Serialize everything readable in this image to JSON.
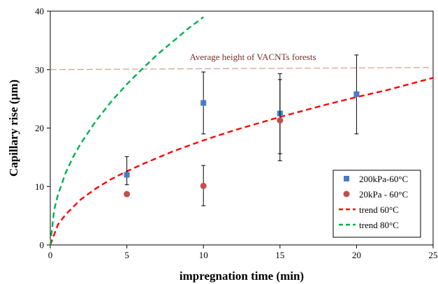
{
  "chart_data": {
    "type": "scatter",
    "xlabel": "impregnation time (min)",
    "ylabel": "Capillary rise (µm)",
    "xlim": [
      0,
      25
    ],
    "ylim": [
      0,
      40
    ],
    "xticks": [
      0,
      5,
      10,
      15,
      20,
      25
    ],
    "yticks": [
      0,
      10,
      20,
      30,
      40
    ],
    "grid": false,
    "legend_position": "bottom-right",
    "reference_line": {
      "label": "Average height of VACNTs forests",
      "y": 30,
      "color": "#c9a08a"
    },
    "series": [
      {
        "name": "200kPa-60°C",
        "kind": "points",
        "marker": "square",
        "color": "#4a7cc3",
        "x": [
          5,
          10,
          15,
          20
        ],
        "y": [
          12.0,
          24.3,
          22.5,
          25.8
        ],
        "error_low": [
          10.3,
          19.0,
          15.6,
          19.0
        ],
        "error_high": [
          15.1,
          29.6,
          28.3,
          32.5
        ]
      },
      {
        "name": "20kPa - 60°C",
        "kind": "points",
        "marker": "circle",
        "color": "#c0504d",
        "x": [
          5,
          10,
          15
        ],
        "y": [
          8.7,
          10.1,
          21.3
        ],
        "error_low": [
          null,
          6.7,
          14.4
        ],
        "error_high": [
          null,
          13.6,
          29.3
        ]
      },
      {
        "name": "trend 60°C",
        "kind": "curve",
        "style": "dashed",
        "color": "#ff0000",
        "x": [
          0,
          0.5,
          1,
          2,
          3,
          4,
          5,
          6,
          8,
          10,
          12,
          15,
          18,
          20,
          22,
          25
        ],
        "y": [
          0,
          3.5,
          5.2,
          7.8,
          9.7,
          11.3,
          12.6,
          13.8,
          16.0,
          17.9,
          19.6,
          21.9,
          24.0,
          25.3,
          26.5,
          28.6
        ]
      },
      {
        "name": "trend 80°C",
        "kind": "curve",
        "style": "dashed",
        "color": "#00b050",
        "x": [
          0,
          0.25,
          0.5,
          1,
          1.5,
          2,
          3,
          4,
          5,
          6,
          7,
          8,
          9,
          10
        ],
        "y": [
          0,
          6.0,
          8.6,
          12.3,
          15.1,
          17.4,
          21.3,
          24.6,
          27.5,
          30.1,
          32.6,
          34.8,
          37.0,
          39.0
        ]
      }
    ]
  }
}
